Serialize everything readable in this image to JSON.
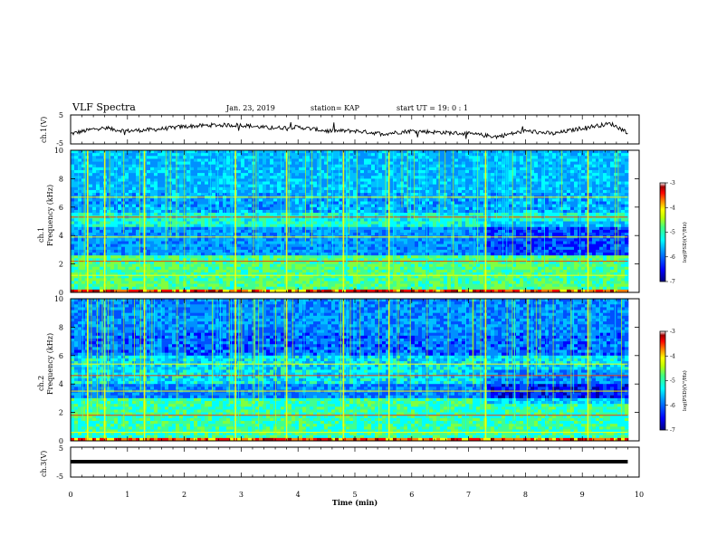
{
  "header": {
    "title": "VLF Spectra",
    "date": "Jan. 23, 2019",
    "station": "station= KAP",
    "start": "start  UT =   19: 0  : 1"
  },
  "colorbar": {
    "label": "log(PSD)(V²/Hz)",
    "ticks": [
      "-3",
      "-4",
      "-5",
      "-6",
      "-7"
    ],
    "colors": [
      "#000080",
      "#0000ff",
      "#0080ff",
      "#00ffff",
      "#80ff80",
      "#ffff00",
      "#ff8000",
      "#ff0000",
      "#800000",
      "#ffffff"
    ]
  },
  "chart_data": [
    {
      "type": "line",
      "panel": "ch1-waveform",
      "ylabel": "ch.1(V)",
      "yticks": [
        "5",
        "-5"
      ],
      "ylim": [
        -5,
        5
      ],
      "xlim": [
        0,
        10
      ],
      "x": [
        0,
        0.5,
        1,
        1.5,
        2,
        2.5,
        3,
        3.5,
        4,
        4.5,
        5,
        5.5,
        6,
        6.5,
        7,
        7.5,
        8,
        8.5,
        9,
        9.5,
        9.8
      ],
      "values": [
        -1.5,
        0.5,
        -0.5,
        0,
        1,
        1.5,
        1.5,
        0.5,
        0.8,
        -0.5,
        -0.5,
        -1.5,
        -0.5,
        -1,
        -1.5,
        -2.5,
        -0.5,
        -1.5,
        0.5,
        2,
        -1
      ]
    },
    {
      "type": "heatmap",
      "panel": "ch1-spectrogram",
      "ylabel": "ch.1\nFrequency (kHz)",
      "yticks": [
        "10",
        "8",
        "6",
        "4",
        "2",
        "0"
      ],
      "ylim": [
        0,
        10
      ],
      "xlim": [
        0,
        10
      ],
      "bands_khz": [
        1.2,
        2.2,
        3.9,
        5.3,
        6.7
      ],
      "spike_times_min": [
        0.3,
        0.6,
        1.3,
        2.9,
        3.8,
        4.8,
        5.6,
        7.3,
        9.1
      ]
    },
    {
      "type": "heatmap",
      "panel": "ch2-spectrogram",
      "ylabel": "ch.2\nFrequency (kHz)",
      "yticks": [
        "10",
        "8",
        "6",
        "4",
        "2",
        "0"
      ],
      "ylim": [
        0,
        10
      ],
      "xlim": [
        0,
        10
      ],
      "bands_khz": [
        0.6,
        1.8,
        3.5,
        4.6,
        5.4
      ],
      "spike_times_min": [
        0.3,
        0.6,
        1.3,
        2.9,
        3.8,
        4.8,
        5.6,
        7.3,
        9.1
      ]
    },
    {
      "type": "line",
      "panel": "ch3-waveform",
      "ylabel": "ch.3(V)",
      "yticks": [
        "5",
        "-5"
      ],
      "ylim": [
        -5,
        5
      ],
      "xlim": [
        0,
        10
      ],
      "x": [
        0,
        9.8
      ],
      "values": [
        0,
        0
      ],
      "xlabel": "Time  (min)",
      "xticks": [
        "0",
        "1",
        "2",
        "3",
        "4",
        "5",
        "6",
        "7",
        "8",
        "9",
        "10"
      ]
    }
  ]
}
